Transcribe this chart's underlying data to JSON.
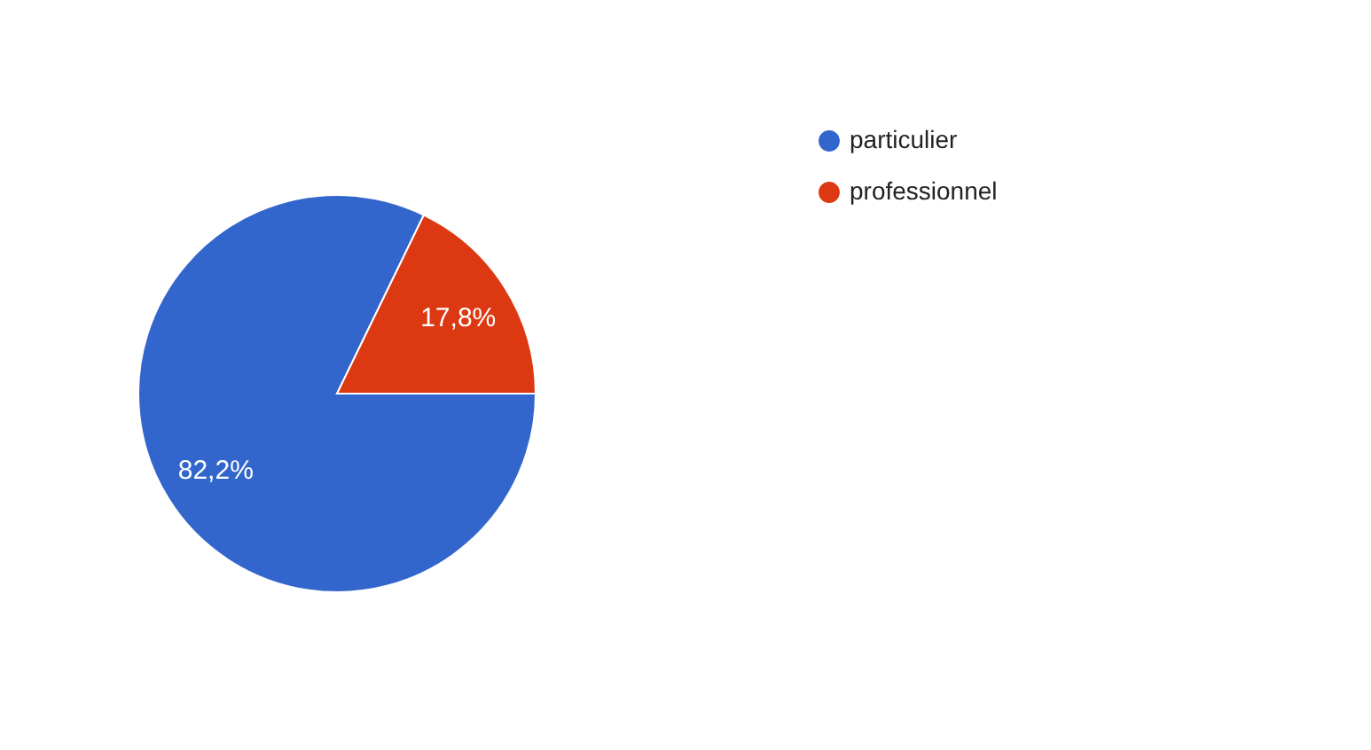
{
  "chart_data": {
    "type": "pie",
    "categories": [
      "particulier",
      "professionnel"
    ],
    "values": [
      82.2,
      17.8
    ],
    "colors": [
      "#3366cc",
      "#dc3912"
    ],
    "value_labels": [
      "82,2%",
      "17,8%"
    ],
    "legend": "top right"
  }
}
